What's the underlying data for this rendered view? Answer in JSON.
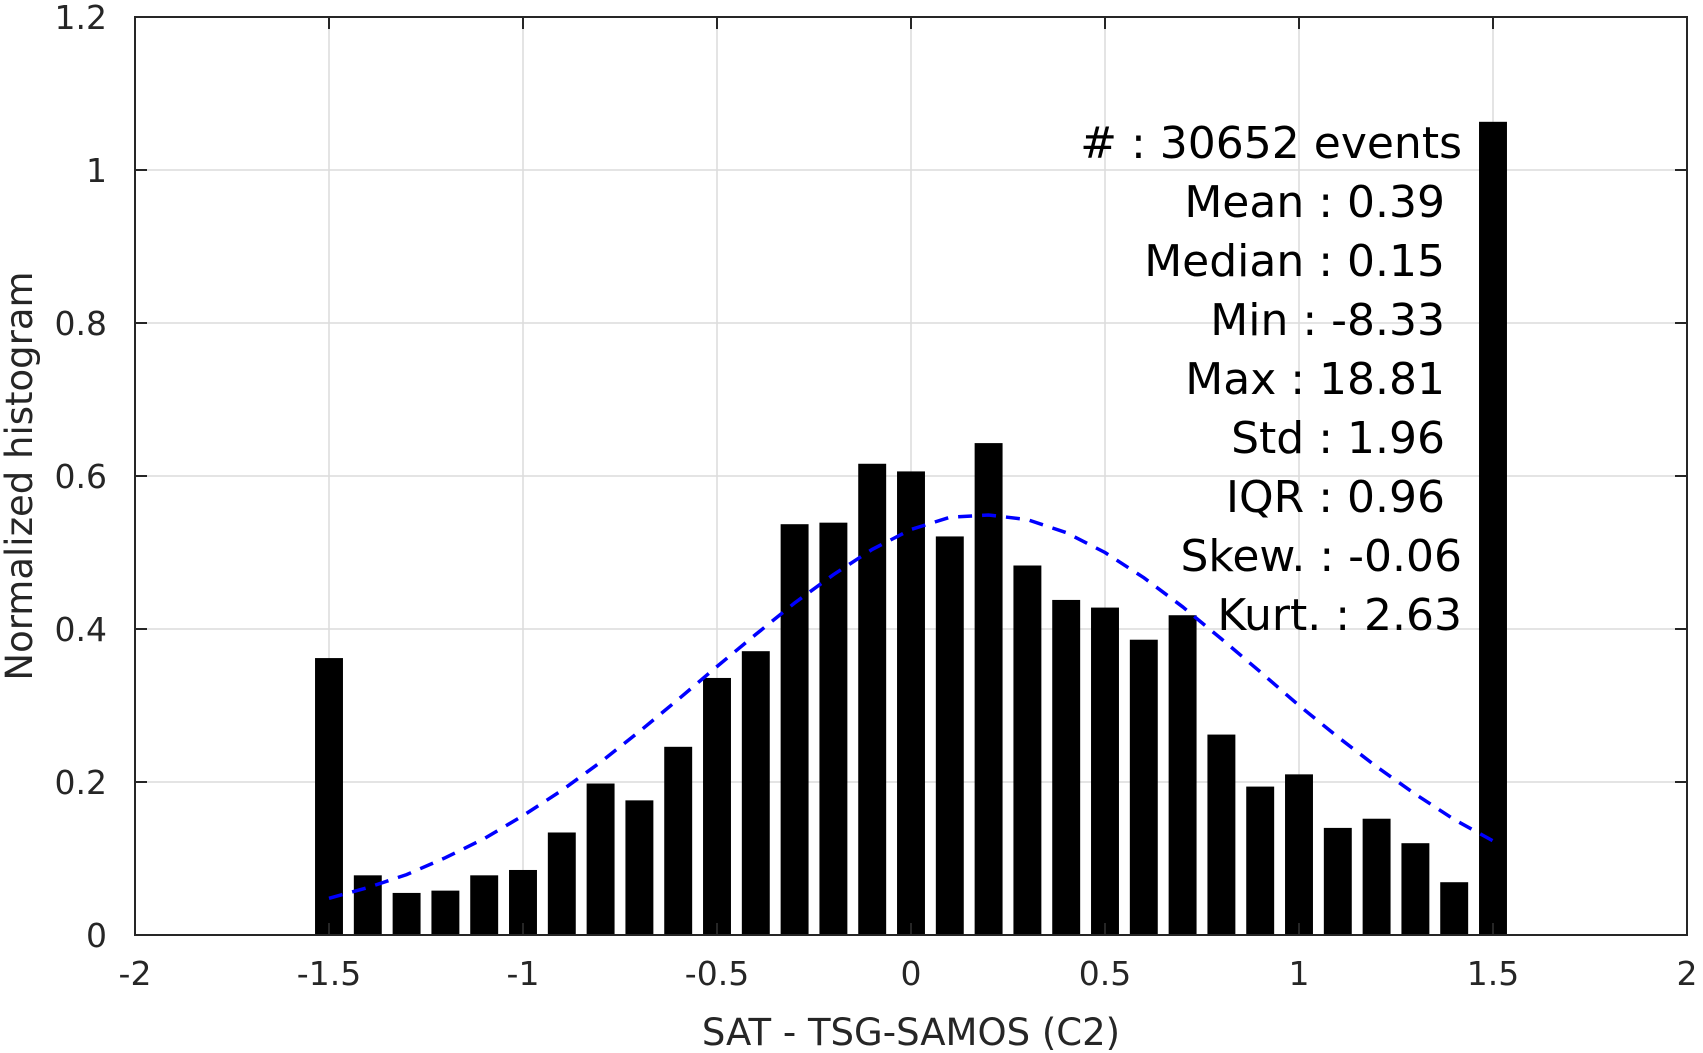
{
  "chart_data": {
    "type": "bar",
    "xlabel": "SAT - TSG-SAMOS (C2)",
    "ylabel": "Normalized histogram",
    "xlim": [
      -2,
      2
    ],
    "ylim": [
      0,
      1.2
    ],
    "xticks": [
      "-2",
      "-1.5",
      "-1",
      "-0.5",
      "0",
      "0.5",
      "1",
      "1.5",
      "2"
    ],
    "yticks": [
      "0",
      "0.2",
      "0.4",
      "0.6",
      "0.8",
      "1",
      "1.2"
    ],
    "grid": true,
    "bin_width": 0.1,
    "bins": {
      "x": [
        -1.5,
        -1.4,
        -1.3,
        -1.2,
        -1.1,
        -1.0,
        -0.9,
        -0.8,
        -0.7,
        -0.6,
        -0.5,
        -0.4,
        -0.3,
        -0.2,
        -0.1,
        0.0,
        0.1,
        0.2,
        0.3,
        0.4,
        0.5,
        0.6,
        0.7,
        0.8,
        0.9,
        1.0,
        1.1,
        1.2,
        1.3,
        1.4,
        1.5
      ],
      "values": [
        0.362,
        0.078,
        0.055,
        0.058,
        0.078,
        0.085,
        0.134,
        0.198,
        0.176,
        0.246,
        0.336,
        0.371,
        0.537,
        0.539,
        0.616,
        0.606,
        0.521,
        0.643,
        0.483,
        0.438,
        0.428,
        0.386,
        0.418,
        0.262,
        0.194,
        0.21,
        0.14,
        0.152,
        0.12,
        0.069,
        1.063
      ]
    },
    "fit": {
      "type": "normal",
      "style": "dashed",
      "color": "#0000ff",
      "x": [
        -1.5,
        -1.4,
        -1.3,
        -1.2,
        -1.1,
        -1.0,
        -0.9,
        -0.8,
        -0.7,
        -0.6,
        -0.5,
        -0.4,
        -0.3,
        -0.2,
        -0.1,
        0.0,
        0.1,
        0.2,
        0.3,
        0.4,
        0.5,
        0.6,
        0.7,
        0.8,
        0.9,
        1.0,
        1.1,
        1.2,
        1.3,
        1.4,
        1.5
      ],
      "values": [
        0.048,
        0.062,
        0.079,
        0.101,
        0.126,
        0.156,
        0.189,
        0.226,
        0.266,
        0.308,
        0.351,
        0.393,
        0.434,
        0.471,
        0.504,
        0.53,
        0.546,
        0.549,
        0.543,
        0.526,
        0.5,
        0.467,
        0.429,
        0.387,
        0.344,
        0.3,
        0.259,
        0.22,
        0.184,
        0.151,
        0.123
      ]
    },
    "stats": [
      "#  : 30652 events",
      "Mean : 0.39",
      "Median : 0.15",
      "Min : -8.33",
      "Max : 18.81",
      "Std : 1.96",
      "IQR : 0.96",
      "Skew. : -0.06",
      "Kurt. : 2.63"
    ],
    "colors": {
      "bars": "#000000",
      "fit": "#0000ff",
      "grid": "#dcdcdc",
      "axis": "#262626"
    }
  }
}
